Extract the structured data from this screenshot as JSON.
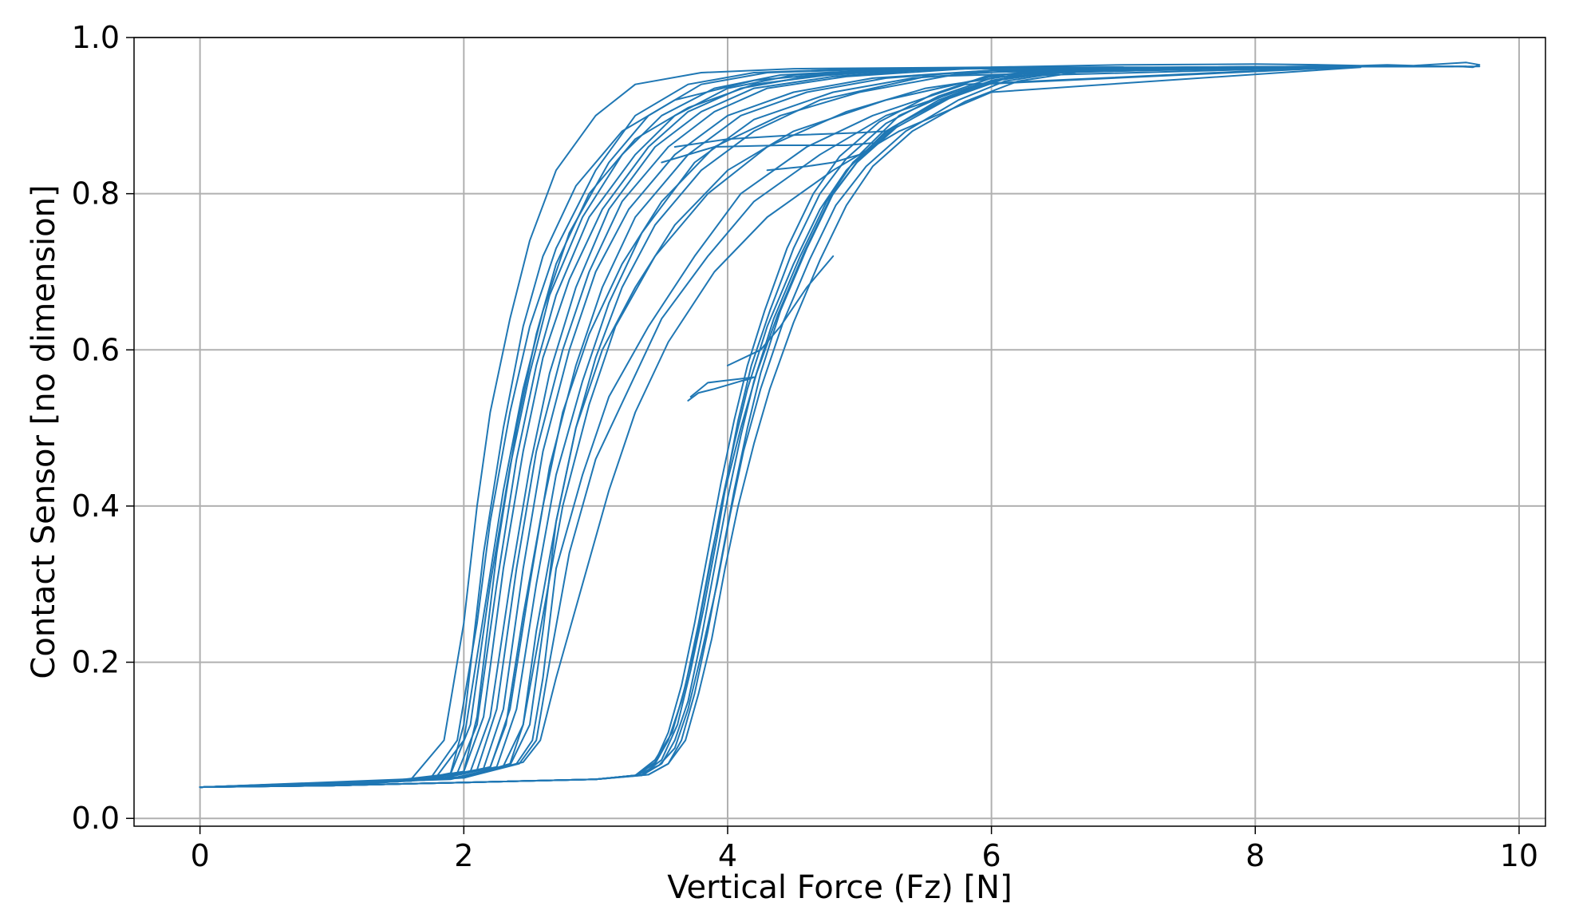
{
  "chart_data": {
    "type": "line",
    "title": "",
    "xlabel": "Vertical Force (Fz) [N]",
    "ylabel": "Contact Sensor [no dimension]",
    "xlim": [
      -0.5,
      10.2
    ],
    "ylim": [
      -0.01,
      1.0
    ],
    "xticks": [
      0,
      2,
      4,
      6,
      8,
      10
    ],
    "xtick_labels": [
      "0",
      "2",
      "4",
      "6",
      "8",
      "10"
    ],
    "yticks": [
      0.0,
      0.2,
      0.4,
      0.6,
      0.8,
      1.0
    ],
    "ytick_labels": [
      "0.0",
      "0.2",
      "0.4",
      "0.6",
      "0.8",
      "1.0"
    ],
    "grid": true,
    "legend": "none",
    "line_color": "#1f77b4",
    "grid_color": "#b0b0b0",
    "series": [
      {
        "x": [
          0,
          1.0,
          1.6,
          1.85,
          2.0,
          2.1,
          2.2,
          2.35,
          2.5,
          2.7,
          3.0,
          3.3,
          3.8,
          4.5,
          6,
          8
        ],
        "y": [
          0.04,
          0.043,
          0.05,
          0.1,
          0.25,
          0.4,
          0.52,
          0.64,
          0.74,
          0.83,
          0.9,
          0.94,
          0.955,
          0.96,
          0.962,
          0.962
        ]
      },
      {
        "x": [
          0,
          1.2,
          1.75,
          1.95,
          2.1,
          2.2,
          2.35,
          2.5,
          2.7,
          3.0,
          3.3,
          3.7,
          4.2,
          5,
          7
        ],
        "y": [
          0.04,
          0.044,
          0.052,
          0.1,
          0.25,
          0.38,
          0.52,
          0.63,
          0.73,
          0.83,
          0.9,
          0.94,
          0.955,
          0.96,
          0.962
        ]
      },
      {
        "x": [
          0,
          1.3,
          1.8,
          2.0,
          2.15,
          2.3,
          2.45,
          2.6,
          2.8,
          3.1,
          3.4,
          3.8,
          4.3,
          5.2,
          7
        ],
        "y": [
          0.04,
          0.045,
          0.055,
          0.1,
          0.26,
          0.42,
          0.55,
          0.65,
          0.75,
          0.84,
          0.9,
          0.94,
          0.955,
          0.96,
          0.962
        ]
      },
      {
        "x": [
          0,
          1.4,
          1.9,
          2.05,
          2.2,
          2.35,
          2.5,
          2.65,
          2.9,
          3.2,
          3.5,
          3.9,
          4.4,
          5.3,
          7.5
        ],
        "y": [
          0.04,
          0.046,
          0.057,
          0.12,
          0.3,
          0.45,
          0.57,
          0.67,
          0.77,
          0.85,
          0.9,
          0.935,
          0.952,
          0.96,
          0.962
        ]
      },
      {
        "x": [
          0,
          1.5,
          1.95,
          2.1,
          2.25,
          2.4,
          2.55,
          2.7,
          2.95,
          3.3,
          3.6,
          4.0,
          4.5,
          5.4,
          7.5
        ],
        "y": [
          0.04,
          0.047,
          0.058,
          0.12,
          0.3,
          0.46,
          0.58,
          0.67,
          0.77,
          0.85,
          0.9,
          0.935,
          0.952,
          0.96,
          0.962
        ]
      },
      {
        "x": [
          0,
          1.5,
          2.0,
          2.15,
          2.3,
          2.45,
          2.6,
          2.8,
          3.05,
          3.4,
          3.7,
          4.1,
          4.6,
          5.5,
          7.8
        ],
        "y": [
          0.04,
          0.047,
          0.06,
          0.13,
          0.32,
          0.47,
          0.59,
          0.69,
          0.78,
          0.86,
          0.905,
          0.935,
          0.95,
          0.96,
          0.962
        ]
      },
      {
        "x": [
          0,
          1.6,
          2.05,
          2.2,
          2.35,
          2.5,
          2.65,
          2.85,
          3.1,
          3.45,
          3.8,
          4.2,
          4.8,
          5.6,
          8
        ],
        "y": [
          0.04,
          0.048,
          0.06,
          0.13,
          0.3,
          0.45,
          0.57,
          0.68,
          0.78,
          0.86,
          0.905,
          0.935,
          0.95,
          0.96,
          0.962
        ]
      },
      {
        "x": [
          0,
          1.6,
          2.1,
          2.25,
          2.4,
          2.55,
          2.75,
          2.95,
          3.2,
          3.55,
          3.9,
          4.3,
          4.9,
          5.8,
          8
        ],
        "y": [
          0.04,
          0.048,
          0.062,
          0.14,
          0.32,
          0.47,
          0.6,
          0.7,
          0.79,
          0.86,
          0.905,
          0.935,
          0.95,
          0.96,
          0.962
        ]
      },
      {
        "x": [
          0,
          1.7,
          2.15,
          2.3,
          2.45,
          2.6,
          2.8,
          3.0,
          3.25,
          3.6,
          4.0,
          4.5,
          5.1,
          6,
          8.2
        ],
        "y": [
          0.04,
          0.049,
          0.064,
          0.14,
          0.32,
          0.47,
          0.6,
          0.7,
          0.78,
          0.85,
          0.9,
          0.93,
          0.948,
          0.958,
          0.962
        ]
      },
      {
        "x": [
          0,
          1.7,
          2.2,
          2.35,
          2.5,
          2.65,
          2.85,
          3.05,
          3.3,
          3.7,
          4.1,
          4.6,
          5.2,
          6,
          8.3
        ],
        "y": [
          0.04,
          0.05,
          0.065,
          0.14,
          0.3,
          0.45,
          0.58,
          0.68,
          0.77,
          0.85,
          0.9,
          0.93,
          0.948,
          0.958,
          0.962
        ]
      },
      {
        "x": [
          0,
          1.8,
          2.25,
          2.4,
          2.55,
          2.7,
          2.9,
          3.1,
          3.35,
          3.75,
          4.2,
          4.8,
          5.4,
          6.2,
          8.5
        ],
        "y": [
          0.04,
          0.05,
          0.066,
          0.14,
          0.3,
          0.44,
          0.56,
          0.66,
          0.75,
          0.84,
          0.895,
          0.93,
          0.948,
          0.958,
          0.962
        ]
      },
      {
        "x": [
          0,
          1.9,
          2.3,
          2.45,
          2.6,
          2.75,
          2.95,
          3.15,
          3.45,
          3.85,
          4.3,
          4.9,
          5.5,
          6.3,
          8.5
        ],
        "y": [
          0.04,
          0.05,
          0.067,
          0.12,
          0.26,
          0.4,
          0.53,
          0.63,
          0.72,
          0.8,
          0.86,
          0.905,
          0.935,
          0.955,
          0.962
        ]
      },
      {
        "x": [
          0,
          1.9,
          2.35,
          2.5,
          2.6,
          2.7,
          2.85,
          3.05,
          3.3,
          3.6,
          4.0,
          4.5,
          5.2,
          6.0,
          8.6
        ],
        "y": [
          0.04,
          0.051,
          0.068,
          0.12,
          0.24,
          0.38,
          0.5,
          0.6,
          0.68,
          0.76,
          0.83,
          0.88,
          0.92,
          0.95,
          0.962
        ]
      },
      {
        "x": [
          0,
          2.0,
          2.4,
          2.52,
          2.6,
          2.7,
          2.9,
          3.1,
          3.4,
          3.75,
          4.1,
          4.6,
          5.1,
          5.8,
          8.6
        ],
        "y": [
          0.04,
          0.052,
          0.07,
          0.1,
          0.18,
          0.32,
          0.44,
          0.54,
          0.63,
          0.72,
          0.8,
          0.86,
          0.9,
          0.94,
          0.962
        ]
      },
      {
        "x": [
          0,
          2.0,
          2.42,
          2.55,
          2.65,
          2.8,
          3.0,
          3.25,
          3.5,
          3.85,
          4.2,
          4.7,
          5.2,
          5.9,
          8.7
        ],
        "y": [
          0.04,
          0.052,
          0.07,
          0.1,
          0.2,
          0.34,
          0.46,
          0.55,
          0.64,
          0.72,
          0.79,
          0.85,
          0.9,
          0.94,
          0.962
        ]
      },
      {
        "x": [
          0,
          2.0,
          2.45,
          2.58,
          2.7,
          2.9,
          3.1,
          3.3,
          3.55,
          3.9,
          4.3,
          4.8,
          5.3,
          6.0,
          8.8
        ],
        "y": [
          0.04,
          0.053,
          0.072,
          0.1,
          0.18,
          0.3,
          0.42,
          0.52,
          0.61,
          0.7,
          0.77,
          0.83,
          0.88,
          0.93,
          0.962
        ]
      },
      {
        "x": [
          0,
          2.0,
          2.35,
          2.45,
          2.55,
          2.7,
          2.85,
          3.0,
          3.2,
          3.45,
          3.8,
          4.2,
          4.7,
          5.5,
          8.0
        ],
        "y": [
          0.04,
          0.052,
          0.07,
          0.12,
          0.24,
          0.38,
          0.5,
          0.59,
          0.68,
          0.76,
          0.83,
          0.88,
          0.92,
          0.95,
          0.962
        ]
      },
      {
        "x": [
          0,
          1.8,
          2.2,
          2.32,
          2.45,
          2.6,
          2.75,
          2.95,
          3.2,
          3.5,
          3.9,
          4.4,
          5.0,
          5.8,
          8.0
        ],
        "y": [
          0.04,
          0.05,
          0.066,
          0.12,
          0.26,
          0.4,
          0.52,
          0.62,
          0.71,
          0.79,
          0.86,
          0.9,
          0.93,
          0.955,
          0.962
        ]
      },
      {
        "x": [
          0,
          1.7,
          2.0,
          2.1,
          2.25,
          2.4,
          2.55,
          2.7,
          2.95,
          3.3,
          3.7,
          4.2,
          4.9,
          5.8,
          8.0
        ],
        "y": [
          0.04,
          0.049,
          0.06,
          0.13,
          0.34,
          0.5,
          0.62,
          0.71,
          0.8,
          0.87,
          0.91,
          0.94,
          0.955,
          0.96,
          0.962
        ]
      },
      {
        "x": [
          0,
          1.6,
          1.9,
          2.0,
          2.15,
          2.3,
          2.45,
          2.6,
          2.85,
          3.2,
          3.6,
          4.2,
          5.0,
          6.0,
          8.0
        ],
        "y": [
          0.04,
          0.048,
          0.058,
          0.12,
          0.34,
          0.5,
          0.63,
          0.72,
          0.81,
          0.88,
          0.92,
          0.945,
          0.957,
          0.961,
          0.962
        ]
      },
      {
        "x": [
          0,
          1.0,
          2.0,
          3.0,
          3.3,
          3.45,
          3.55,
          3.65,
          3.75,
          3.85,
          3.95,
          4.05,
          4.15,
          4.3,
          4.5,
          4.7,
          4.9,
          5.2,
          5.6,
          6.0,
          6.5,
          7.5,
          8.5,
          9.3
        ],
        "y": [
          0.04,
          0.042,
          0.046,
          0.05,
          0.055,
          0.07,
          0.1,
          0.15,
          0.22,
          0.31,
          0.4,
          0.48,
          0.55,
          0.63,
          0.71,
          0.78,
          0.83,
          0.88,
          0.92,
          0.945,
          0.958,
          0.962,
          0.963,
          0.963
        ]
      },
      {
        "x": [
          0,
          1.0,
          2.0,
          3.0,
          3.35,
          3.5,
          3.6,
          3.7,
          3.8,
          3.9,
          4.0,
          4.1,
          4.2,
          4.35,
          4.55,
          4.75,
          4.95,
          5.25,
          5.65,
          6.05,
          6.6,
          7.6,
          8.6,
          9.5
        ],
        "y": [
          0.04,
          0.042,
          0.046,
          0.05,
          0.055,
          0.07,
          0.1,
          0.15,
          0.23,
          0.32,
          0.41,
          0.49,
          0.56,
          0.64,
          0.72,
          0.79,
          0.84,
          0.885,
          0.922,
          0.946,
          0.958,
          0.962,
          0.963,
          0.963
        ]
      },
      {
        "x": [
          0,
          1.0,
          2.0,
          3.0,
          3.4,
          3.55,
          3.65,
          3.75,
          3.85,
          3.95,
          4.05,
          4.15,
          4.25,
          4.4,
          4.6,
          4.8,
          5.0,
          5.3,
          5.7,
          6.1,
          6.6,
          7.6,
          8.6,
          9.6
        ],
        "y": [
          0.04,
          0.042,
          0.046,
          0.05,
          0.056,
          0.07,
          0.1,
          0.16,
          0.24,
          0.33,
          0.42,
          0.5,
          0.57,
          0.65,
          0.73,
          0.8,
          0.845,
          0.89,
          0.925,
          0.948,
          0.959,
          0.962,
          0.963,
          0.963
        ]
      },
      {
        "x": [
          0,
          1.0,
          2.0,
          3.0,
          3.3,
          3.45,
          3.58,
          3.68,
          3.78,
          3.88,
          3.98,
          4.1,
          4.22,
          4.38,
          4.58,
          4.78,
          4.98,
          5.28,
          5.68,
          6.08,
          6.6,
          7.5,
          8.5,
          9.7
        ],
        "y": [
          0.04,
          0.042,
          0.046,
          0.05,
          0.055,
          0.075,
          0.11,
          0.17,
          0.25,
          0.34,
          0.42,
          0.5,
          0.57,
          0.645,
          0.725,
          0.795,
          0.84,
          0.885,
          0.922,
          0.946,
          0.958,
          0.962,
          0.963,
          0.963
        ]
      },
      {
        "x": [
          0,
          1.0,
          2.0,
          3.0,
          3.3,
          3.48,
          3.6,
          3.7,
          3.8,
          3.92,
          4.02,
          4.12,
          4.25,
          4.42,
          4.62,
          4.82,
          5.05,
          5.35,
          5.75,
          6.1,
          6.6,
          7.6,
          8.6,
          9.5
        ],
        "y": [
          0.04,
          0.042,
          0.046,
          0.05,
          0.055,
          0.068,
          0.09,
          0.14,
          0.21,
          0.3,
          0.39,
          0.47,
          0.55,
          0.635,
          0.715,
          0.785,
          0.835,
          0.88,
          0.92,
          0.944,
          0.957,
          0.962,
          0.963,
          0.963
        ]
      },
      {
        "x": [
          0,
          1.0,
          2.0,
          3.0,
          3.35,
          3.5,
          3.62,
          3.72,
          3.82,
          3.92,
          4.0,
          4.08,
          4.18,
          4.32,
          4.5,
          4.7,
          4.9,
          5.2,
          5.6,
          6.0,
          6.5,
          7.5,
          8.5,
          9.4
        ],
        "y": [
          0.04,
          0.042,
          0.046,
          0.05,
          0.056,
          0.075,
          0.12,
          0.19,
          0.27,
          0.36,
          0.44,
          0.51,
          0.58,
          0.65,
          0.73,
          0.8,
          0.845,
          0.89,
          0.925,
          0.948,
          0.959,
          0.962,
          0.963,
          0.963
        ]
      },
      {
        "x": [
          0,
          1.0,
          2.0,
          3.0,
          3.4,
          3.55,
          3.68,
          3.78,
          3.88,
          3.98,
          4.08,
          4.2,
          4.32,
          4.5,
          4.7,
          4.9,
          5.1,
          5.4,
          5.8,
          6.2,
          6.7,
          7.7,
          8.7,
          9.6
        ],
        "y": [
          0.04,
          0.042,
          0.046,
          0.05,
          0.056,
          0.07,
          0.1,
          0.16,
          0.23,
          0.32,
          0.4,
          0.48,
          0.55,
          0.635,
          0.715,
          0.785,
          0.835,
          0.88,
          0.918,
          0.944,
          0.957,
          0.962,
          0.963,
          0.963
        ]
      },
      {
        "x": [
          0,
          1.0,
          2.0,
          3.0,
          3.3,
          3.45,
          3.55,
          3.65,
          3.75,
          3.85,
          3.95,
          4.05,
          4.15,
          4.28,
          4.45,
          4.65,
          4.85,
          5.15,
          5.55,
          5.95,
          6.5,
          7.5,
          8.5,
          9.2
        ],
        "y": [
          0.04,
          0.042,
          0.046,
          0.05,
          0.055,
          0.072,
          0.11,
          0.17,
          0.25,
          0.34,
          0.43,
          0.51,
          0.58,
          0.65,
          0.73,
          0.8,
          0.848,
          0.892,
          0.927,
          0.95,
          0.96,
          0.962,
          0.963,
          0.963
        ]
      },
      {
        "x": [
          3.7,
          3.78,
          3.9,
          4.0,
          4.1,
          4.15,
          4.2,
          4.1,
          3.95,
          3.85,
          3.72
        ],
        "y": [
          0.535,
          0.545,
          0.55,
          0.555,
          0.56,
          0.562,
          0.565,
          0.563,
          0.56,
          0.558,
          0.54
        ]
      },
      {
        "x": [
          4.0,
          4.25,
          4.4,
          4.6,
          4.8
        ],
        "y": [
          0.58,
          0.6,
          0.63,
          0.68,
          0.72
        ]
      },
      {
        "x": [
          3.5,
          3.9,
          4.4,
          4.9,
          5.1
        ],
        "y": [
          0.84,
          0.86,
          0.862,
          0.862,
          0.865
        ]
      },
      {
        "x": [
          3.6,
          4.0,
          4.5,
          5.0,
          5.2
        ],
        "y": [
          0.86,
          0.87,
          0.875,
          0.878,
          0.88
        ]
      },
      {
        "x": [
          4.3,
          4.6,
          4.8,
          5.0,
          5.3,
          5.7
        ],
        "y": [
          0.83,
          0.835,
          0.84,
          0.85,
          0.9,
          0.93
        ]
      },
      {
        "x": [
          6.0,
          7.0,
          8.0,
          8.5,
          8.8,
          9.0,
          9.2,
          9.4,
          9.6,
          9.7,
          9.65,
          9.55
        ],
        "y": [
          0.962,
          0.965,
          0.966,
          0.965,
          0.964,
          0.965,
          0.964,
          0.966,
          0.968,
          0.965,
          0.962,
          0.963
        ]
      }
    ]
  }
}
